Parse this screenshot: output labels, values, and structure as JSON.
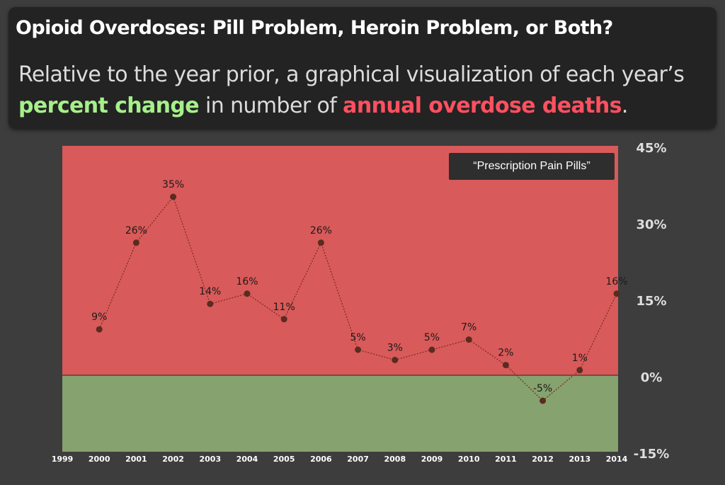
{
  "header": {
    "title": "Opioid Overdoses: Pill Problem, Heroin Problem, or Both?",
    "subtitle_part1": "Relative to the year prior, a graphical visualization of each year’s ",
    "subtitle_green": "percent change",
    "subtitle_part2": " in number of ",
    "subtitle_red": "annual overdose deaths",
    "subtitle_end": "."
  },
  "colors": {
    "positive_region": "#d95a5a",
    "negative_region": "#86a26e",
    "line": "#7a2f26",
    "point": "#5a2b20"
  },
  "chart_data": {
    "type": "line",
    "title": "",
    "xlabel": "",
    "ylabel": "",
    "x": [
      "1999",
      "2000",
      "2001",
      "2002",
      "2003",
      "2004",
      "2005",
      "2006",
      "2007",
      "2008",
      "2009",
      "2010",
      "2011",
      "2012",
      "2013",
      "2014"
    ],
    "series": [
      {
        "name": "“Prescription Pain Pills”",
        "points": [
          {
            "x": "2000",
            "y": 9,
            "label": "9%"
          },
          {
            "x": "2001",
            "y": 26,
            "label": "26%"
          },
          {
            "x": "2002",
            "y": 35,
            "label": "35%"
          },
          {
            "x": "2003",
            "y": 14,
            "label": "14%"
          },
          {
            "x": "2004",
            "y": 16,
            "label": "16%"
          },
          {
            "x": "2005",
            "y": 11,
            "label": "11%"
          },
          {
            "x": "2006",
            "y": 26,
            "label": "26%"
          },
          {
            "x": "2007",
            "y": 5,
            "label": "5%"
          },
          {
            "x": "2008",
            "y": 3,
            "label": "3%"
          },
          {
            "x": "2009",
            "y": 5,
            "label": "5%"
          },
          {
            "x": "2010",
            "y": 7,
            "label": "7%"
          },
          {
            "x": "2011",
            "y": 2,
            "label": "2%"
          },
          {
            "x": "2012",
            "y": -5,
            "label": "-5%"
          },
          {
            "x": "2013",
            "y": 1,
            "label": "1%"
          },
          {
            "x": "2014",
            "y": 16,
            "label": "16%"
          }
        ]
      }
    ],
    "ylim": [
      -15,
      45
    ],
    "yticks": [
      {
        "value": 45,
        "label": "45%"
      },
      {
        "value": 30,
        "label": "30%"
      },
      {
        "value": 15,
        "label": "15%"
      },
      {
        "value": 0,
        "label": "0%"
      },
      {
        "value": -15,
        "label": "-15%"
      }
    ],
    "grid": false,
    "legend_position": "top-right"
  }
}
